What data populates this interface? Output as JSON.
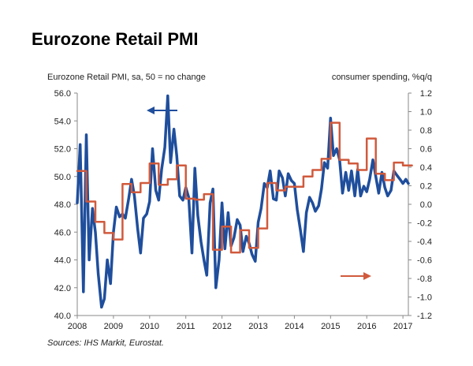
{
  "title": "Eurozone Retail PMI",
  "chart_data": {
    "type": "line",
    "title": "Eurozone Retail PMI",
    "left_axis_label": "Eurozone Retail PMI, sa, 50 = no change",
    "right_axis_label": "consumer spending, %q/q",
    "source": "Sources: IHS Markit, Eurostat.",
    "x_range": [
      2008,
      2017.15
    ],
    "x_ticks": [
      2008,
      2009,
      2010,
      2011,
      2012,
      2013,
      2014,
      2015,
      2016,
      2017
    ],
    "x_tick_labels": [
      "2008",
      "2009",
      "2010",
      "2011",
      "2012",
      "2013",
      "2014",
      "2015",
      "2016",
      "2017"
    ],
    "y_left": {
      "range": [
        40,
        56
      ],
      "ticks": [
        40,
        42,
        44,
        46,
        48,
        50,
        52,
        54,
        56
      ],
      "tick_labels": [
        "40.0",
        "42.0",
        "44.0",
        "46.0",
        "48.0",
        "50.0",
        "52.0",
        "54.0",
        "56.0"
      ]
    },
    "y_right": {
      "range": [
        -1.2,
        1.2
      ],
      "ticks": [
        -1.2,
        -1.0,
        -0.8,
        -0.6,
        -0.4,
        -0.2,
        0.0,
        0.2,
        0.4,
        0.6,
        0.8,
        1.0,
        1.2
      ],
      "tick_labels": [
        "-1.2",
        "-1.0",
        "-0.8",
        "-0.6",
        "-0.4",
        "-0.2",
        "0.0",
        "0.2",
        "0.4",
        "0.6",
        "0.8",
        "1.0",
        "1.2"
      ]
    },
    "series": [
      {
        "name": "Eurozone Retail PMI",
        "axis": "left",
        "color": "#1f4e9c",
        "x": [
          2008.0,
          2008.08,
          2008.17,
          2008.25,
          2008.33,
          2008.42,
          2008.5,
          2008.58,
          2008.67,
          2008.75,
          2008.83,
          2008.92,
          2009.0,
          2009.08,
          2009.17,
          2009.25,
          2009.33,
          2009.42,
          2009.5,
          2009.58,
          2009.67,
          2009.75,
          2009.83,
          2009.92,
          2010.0,
          2010.08,
          2010.17,
          2010.25,
          2010.33,
          2010.42,
          2010.5,
          2010.58,
          2010.67,
          2010.75,
          2010.83,
          2010.92,
          2011.0,
          2011.08,
          2011.17,
          2011.25,
          2011.33,
          2011.42,
          2011.5,
          2011.58,
          2011.67,
          2011.75,
          2011.83,
          2011.92,
          2012.0,
          2012.08,
          2012.17,
          2012.25,
          2012.33,
          2012.42,
          2012.5,
          2012.58,
          2012.67,
          2012.75,
          2012.83,
          2012.92,
          2013.0,
          2013.08,
          2013.17,
          2013.25,
          2013.33,
          2013.42,
          2013.5,
          2013.58,
          2013.67,
          2013.75,
          2013.83,
          2013.92,
          2014.0,
          2014.08,
          2014.17,
          2014.25,
          2014.33,
          2014.42,
          2014.5,
          2014.58,
          2014.67,
          2014.75,
          2014.83,
          2014.92,
          2015.0,
          2015.08,
          2015.17,
          2015.25,
          2015.33,
          2015.42,
          2015.5,
          2015.58,
          2015.67,
          2015.75,
          2015.83,
          2015.92,
          2016.0,
          2016.08,
          2016.17,
          2016.25,
          2016.33,
          2016.42,
          2016.5,
          2016.58,
          2016.67,
          2016.75,
          2016.83,
          2016.92,
          2017.0,
          2017.08,
          2017.15
        ],
        "values": [
          48.1,
          52.3,
          41.7,
          53.0,
          44.0,
          47.7,
          46.0,
          43.0,
          40.6,
          41.2,
          44.0,
          42.3,
          46.0,
          47.8,
          47.1,
          47.3,
          47.0,
          48.4,
          49.8,
          48.6,
          46.2,
          44.5,
          47.0,
          47.3,
          48.2,
          52.0,
          49.0,
          48.3,
          50.5,
          52.1,
          55.8,
          51.0,
          53.4,
          51.5,
          48.6,
          48.3,
          49.2,
          48.5,
          44.5,
          50.6,
          47.2,
          45.3,
          44.0,
          42.9,
          48.1,
          49.1,
          42.0,
          44.0,
          48.1,
          44.8,
          47.4,
          45.0,
          45.6,
          46.9,
          46.5,
          44.6,
          45.7,
          45.2,
          44.4,
          43.9,
          46.7,
          47.7,
          49.5,
          49.2,
          50.4,
          48.4,
          48.3,
          50.4,
          49.9,
          48.6,
          50.2,
          49.7,
          49.5,
          47.6,
          46.1,
          44.6,
          47.4,
          48.5,
          48.1,
          47.5,
          47.9,
          49.1,
          51.0,
          50.6,
          54.2,
          51.5,
          52.0,
          51.2,
          48.8,
          50.3,
          49.0,
          50.4,
          48.6,
          50.5,
          48.6,
          49.3,
          48.9,
          49.8,
          51.2,
          50.0,
          48.8,
          50.3,
          49.2,
          48.6,
          49.0,
          50.4,
          50.1,
          49.8,
          49.5,
          49.8,
          49.5
        ],
        "note": "monthly series digitised from the chart"
      },
      {
        "name": "consumer spending, %q/q",
        "axis": "right",
        "color": "#d05a3c",
        "x": [
          2008.0,
          2008.25,
          2008.5,
          2008.75,
          2009.0,
          2009.25,
          2009.5,
          2009.75,
          2010.0,
          2010.25,
          2010.5,
          2010.75,
          2011.0,
          2011.25,
          2011.5,
          2011.75,
          2012.0,
          2012.25,
          2012.5,
          2012.75,
          2013.0,
          2013.25,
          2013.5,
          2013.75,
          2014.0,
          2014.25,
          2014.5,
          2014.75,
          2015.0,
          2015.25,
          2015.5,
          2015.75,
          2016.0,
          2016.25,
          2016.5,
          2016.75,
          2017.0
        ],
        "values": [
          0.36,
          0.03,
          -0.19,
          -0.31,
          -0.38,
          0.22,
          0.13,
          0.23,
          0.44,
          0.21,
          0.27,
          0.42,
          0.06,
          0.05,
          0.11,
          -0.49,
          -0.24,
          -0.52,
          -0.28,
          -0.47,
          -0.26,
          0.23,
          0.15,
          0.19,
          0.19,
          0.3,
          0.37,
          0.49,
          0.88,
          0.48,
          0.44,
          0.37,
          0.71,
          0.33,
          0.26,
          0.45,
          0.42
        ],
        "step": true
      }
    ],
    "annotations": [
      {
        "text": "arrow pointing left",
        "refers_to": "left axis (Eurozone Retail PMI)",
        "color": "#1f4e9c"
      },
      {
        "text": "arrow pointing right",
        "refers_to": "right axis (consumer spending)",
        "color": "#d05a3c"
      }
    ]
  }
}
